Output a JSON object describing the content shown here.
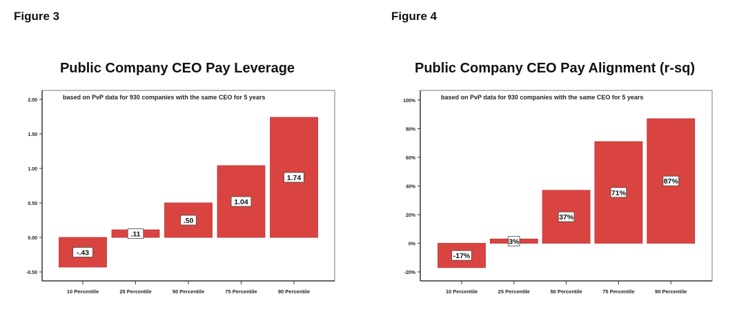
{
  "figures": [
    {
      "label": "Figure 3"
    },
    {
      "label": "Figure 4"
    }
  ],
  "chart_data": [
    {
      "type": "bar",
      "title": "Public Company CEO Pay Leverage",
      "subtitle": "based on PvP data for 930 companies with the same CEO for 5 years",
      "categories": [
        "10 Percentile",
        "25 Percentile",
        "50 Percentile",
        "75 Percentile",
        "90 Percentile"
      ],
      "values": [
        -0.43,
        0.11,
        0.5,
        1.04,
        1.74
      ],
      "data_labels": [
        "-.43",
        ".11",
        ".50",
        "1.04",
        "1.74"
      ],
      "yticks": [
        -0.5,
        0,
        0.5,
        1.0,
        1.5,
        2.0
      ],
      "ytick_labels": [
        "-0.50",
        "0.00",
        "0.50",
        "1.00",
        "1.50",
        "2.00"
      ],
      "ylim": [
        -0.6,
        2.1
      ],
      "xlabel": "",
      "ylabel": "",
      "grid": false,
      "bar_color": "#d94441"
    },
    {
      "type": "bar",
      "title": "Public Company CEO Pay Alignment (r-sq)",
      "subtitle": "based on PvP data for 930 companies with the same CEO for 5 years",
      "categories": [
        "10 Percentile",
        "25 Percentile",
        "50 Percentile",
        "75 Percentile",
        "90 Percentile"
      ],
      "values": [
        -17,
        3,
        37,
        71,
        87
      ],
      "data_labels": [
        "-17%",
        "3%",
        "37%",
        "71%",
        "87%"
      ],
      "yticks": [
        -20,
        0,
        20,
        40,
        60,
        80,
        100
      ],
      "ytick_labels": [
        "-20%",
        "0%",
        "20%",
        "40%",
        "60%",
        "80%",
        "100%"
      ],
      "ylim": [
        -26,
        103
      ],
      "xlabel": "",
      "ylabel": "",
      "grid": false,
      "bar_color": "#d94441"
    }
  ]
}
